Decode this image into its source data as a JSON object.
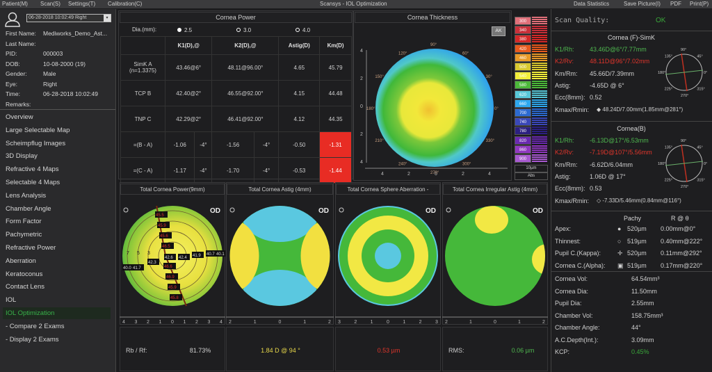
{
  "window": {
    "title": "Scansys - IOL Optimization"
  },
  "menu": {
    "left": [
      "Patient(M)",
      "Scan(S)",
      "Settings(T)",
      "Calibration(C)"
    ],
    "right": [
      "Data Statistics",
      "Save Picture(I)",
      "PDF",
      "Print(P)"
    ]
  },
  "patient": {
    "exam_select": "06-28-2018 10:02:49 Right",
    "fields": [
      {
        "label": "First Name:",
        "value": "Mediworks_Demo_Ast..."
      },
      {
        "label": "Last Name:",
        "value": ""
      },
      {
        "label": "PID:",
        "value": "000003"
      },
      {
        "label": "DOB:",
        "value": "10-08-2000   (19)"
      },
      {
        "label": "Gender:",
        "value": "Male"
      },
      {
        "label": "Eye:",
        "value": "Right"
      },
      {
        "label": "Time:",
        "value": "06-28-2018 10:02:49"
      },
      {
        "label": "Remarks:",
        "value": ""
      }
    ]
  },
  "nav": {
    "items": [
      "Overview",
      "Large Selectable Map",
      "Scheimpflug Images",
      "3D Display",
      "Refractive 4 Maps",
      "Selectable 4 Maps",
      "Lens Analysis",
      "Chamber Angle",
      "Form Factor",
      "Pachymetric",
      "Refractive Power",
      "Aberration",
      "Keratoconus",
      "Contact Lens",
      "IOL",
      "IOL Optimization",
      "- Compare 2 Exams",
      "- Display 2 Exams"
    ],
    "active": "IOL Optimization"
  },
  "cornea_power": {
    "title": "Cornea Power",
    "dia_label": "Dia.(mm):",
    "dia_options": [
      "2.5",
      "3.0",
      "4.0"
    ],
    "dia_selected": "2.5",
    "headers": [
      "",
      "K1(D),@",
      "K2(D),@",
      "Astig(D)",
      "Km(D)"
    ],
    "rows": [
      {
        "label": "SimK A",
        "sub": "(n=1.3375)",
        "k1": "43.46@6°",
        "k2": "48.11@96.00°",
        "astig": "4.65",
        "km": "45.79"
      },
      {
        "label": "TCP B",
        "sub": "",
        "k1": "42.40@2°",
        "k2": "46.55@92.00°",
        "astig": "4.15",
        "km": "44.48"
      },
      {
        "label": "TNP C",
        "sub": "",
        "k1": "42.29@2°",
        "k2": "46.41@92.00°",
        "astig": "4.12",
        "km": "44.35"
      }
    ],
    "diffs": [
      {
        "label": "=(B - A)",
        "k1": "-1.06",
        "k1a": "-4°",
        "k2": "-1.56",
        "k2a": "-4°",
        "astig": "-0.50",
        "km": "-1.31"
      },
      {
        "label": "=(C - A)",
        "k1": "-1.17",
        "k1a": "-4°",
        "k2": "-1.70",
        "k2a": "-4°",
        "astig": "-0.53",
        "km": "-1.44"
      }
    ]
  },
  "thickness": {
    "title": "Cornea Thickness",
    "button": "AK",
    "axis_ticks": [
      "4",
      "2",
      "0",
      "2",
      "4"
    ],
    "angles": [
      "90°",
      "120°",
      "60°",
      "150°",
      "30°",
      "180°",
      "0°",
      "210°",
      "330°",
      "240°",
      "300°",
      "270°"
    ],
    "scale": [
      {
        "v": "300",
        "c": "#e0707a"
      },
      {
        "v": "340",
        "c": "#c8303a"
      },
      {
        "v": "380",
        "c": "#d42828"
      },
      {
        "v": "420",
        "c": "#e85a1e"
      },
      {
        "v": "460",
        "c": "#e89a28"
      },
      {
        "v": "500",
        "c": "#d8c830"
      },
      {
        "v": "540",
        "c": "#f2ee3a"
      },
      {
        "v": "580",
        "c": "#4cb83a"
      },
      {
        "v": "620",
        "c": "#58c8d8"
      },
      {
        "v": "660",
        "c": "#2ea8ee"
      },
      {
        "v": "700",
        "c": "#2c6ad0"
      },
      {
        "v": "740",
        "c": "#3a48b8"
      },
      {
        "v": "780",
        "c": "#2c2080"
      },
      {
        "v": "820",
        "c": "#6a2ab0"
      },
      {
        "v": "860",
        "c": "#9038c0"
      },
      {
        "v": "900",
        "c": "#a85ad0"
      }
    ],
    "step": "10µm",
    "mode": "Abs"
  },
  "maps": [
    {
      "title": "Total Cornea Power(9mm)",
      "eye": "OD",
      "ticks": [
        "4",
        "3",
        "2",
        "1",
        "0",
        "1",
        "2",
        "3",
        "4"
      ],
      "value_label": "Rb / Rf:",
      "value": "81.73%",
      "value_color": "#d0d0d0",
      "labels_red": [
        "45.5",
        "45.9",
        "45.6",
        "46.5",
        "46.6",
        "46.9",
        "45.9",
        "45.8"
      ],
      "labels_dark": [
        "42.6",
        "42.4",
        "41.9",
        "40.7",
        "40.1",
        "42.3",
        "40.0",
        "41.7"
      ],
      "ring_numbers": [
        "7",
        "5",
        "3"
      ]
    },
    {
      "title": "Total Cornea Astig (4mm)",
      "eye": "OD",
      "ticks": [
        "2",
        "1",
        "0",
        "1",
        "2"
      ],
      "value_label": "",
      "value": "1.84 D @ 94 °",
      "value_color": "#e8d84a"
    },
    {
      "title": "Total Cornea Sphere Aberration -",
      "eye": "OD",
      "ticks": [
        "3",
        "2",
        "1",
        "0",
        "1",
        "2",
        "3"
      ],
      "value_label": "",
      "value": "0.53 µm",
      "value_color": "#e0352b"
    },
    {
      "title": "Total Cornea Irregular Astig (4mm)",
      "eye": "OD",
      "ticks": [
        "2",
        "1",
        "0",
        "1",
        "2"
      ],
      "value_label": "RMS:",
      "value": "0.06 µm",
      "value_color": "#4fb84f"
    }
  ],
  "right": {
    "scan_quality_label": "Scan Quality:",
    "scan_quality": "OK",
    "front": {
      "title": "Cornea (F)-SimK",
      "rows": [
        {
          "l": "K1/Rh:",
          "v": "43.46D@6°/7.77mm",
          "c": "g"
        },
        {
          "l": "K2/Rv:",
          "v": "48.11D@96°/7.02mm",
          "c": "r"
        },
        {
          "l": "Km/Rm:",
          "v": "45.66D/7.39mm",
          "c": ""
        },
        {
          "l": "Astig:",
          "v": "-4.65D @ 6°",
          "c": ""
        },
        {
          "l": "Ecc(8mm):",
          "v": "0.52",
          "c": ""
        },
        {
          "l": "Kmax/Rmin:",
          "v": "◆ 48.24D/7.00mm(1.85mm@281°)",
          "c": ""
        }
      ]
    },
    "back": {
      "title": "Cornea(B)",
      "rows": [
        {
          "l": "K1/Rh:",
          "v": "-6.13D@17°/6.53mm",
          "c": "g"
        },
        {
          "l": "K2/Rv:",
          "v": "-7.19D@107°/5.56mm",
          "c": "r"
        },
        {
          "l": "Km/Rm:",
          "v": "-6.62D/6.04mm",
          "c": ""
        },
        {
          "l": "Astig:",
          "v": "1.06D @ 17°",
          "c": ""
        },
        {
          "l": "Ecc(8mm):",
          "v": "0.53",
          "c": ""
        },
        {
          "l": "Kmax/Rmin:",
          "v": "◇ -7.33D/5.46mm(0.84mm@116°)",
          "c": ""
        }
      ]
    },
    "compass_angles": [
      "90°",
      "135°",
      "45°",
      "180°",
      "0°",
      "225°",
      "315°",
      "270°"
    ],
    "pachy": {
      "headers": [
        "Pachy",
        "R @ θ"
      ],
      "rows": [
        {
          "l": "Apex:",
          "sym": "●",
          "p": "520µm",
          "r": "0.00mm@0°"
        },
        {
          "l": "Thinnest:",
          "sym": "○",
          "p": "519µm",
          "r": "0.40mm@222°"
        },
        {
          "l": "Pupil C.(Kappa):",
          "sym": "✛",
          "p": "520µm",
          "r": "0.11mm@292°"
        },
        {
          "l": "Cornea C.(Alpha):",
          "sym": "▣",
          "p": "519µm",
          "r": "0.17mm@220°"
        }
      ]
    },
    "stats": [
      {
        "l": "Cornea Vol:",
        "v": "64.54mm³"
      },
      {
        "l": "Cornea Dia:",
        "v": "11.50mm"
      },
      {
        "l": "Pupil Dia:",
        "v": "2.55mm"
      },
      {
        "l": "Chamber Vol:",
        "v": "158.75mm³"
      },
      {
        "l": "Chamber Angle:",
        "v": "44°"
      },
      {
        "l": "A.C.Depth(Int.):",
        "v": "3.09mm"
      },
      {
        "l": "KCP:",
        "v": "0.45%"
      }
    ]
  }
}
